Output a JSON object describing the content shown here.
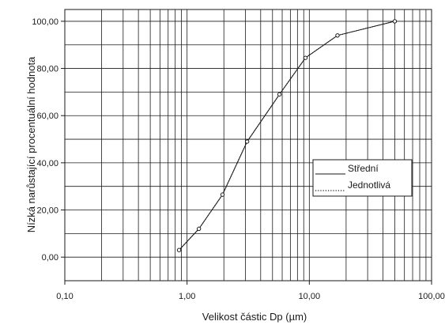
{
  "chart_data": {
    "type": "line",
    "title": "",
    "xlabel": "Velikost částic Dp (µm)",
    "ylabel": "Nízká narůstající procentuální hodnota",
    "x_scale": "log",
    "xlim": [
      0.1,
      100
    ],
    "ylim": [
      -10,
      105
    ],
    "x_ticks": [
      {
        "value": 0.1,
        "label": "0,10"
      },
      {
        "value": 1,
        "label": "1,00"
      },
      {
        "value": 10,
        "label": "10,00"
      },
      {
        "value": 100,
        "label": "100,00"
      }
    ],
    "y_ticks": [
      {
        "value": 0,
        "label": "0,00"
      },
      {
        "value": 20,
        "label": "20,00"
      },
      {
        "value": 40,
        "label": "40,00"
      },
      {
        "value": 60,
        "label": "60,00"
      },
      {
        "value": 80,
        "label": "80,00"
      },
      {
        "value": 100,
        "label": "100,00"
      }
    ],
    "grid": true,
    "legend_position": "right",
    "legend": [
      {
        "text": "Střední",
        "style": "solid"
      },
      {
        "text": "Jednotlivá",
        "style": "dotted"
      }
    ],
    "series": [
      {
        "style": "solid",
        "color": "#1a1a1a",
        "x": [
          0.86,
          1.25,
          1.95,
          3.1,
          5.7,
          9.3,
          17,
          50
        ],
        "y": [
          3,
          12,
          26.5,
          49,
          69,
          84.5,
          94,
          100
        ]
      },
      {
        "style": "dotted",
        "color": "#1a1a1a",
        "x": [
          0.86,
          1.25,
          1.95,
          3.1,
          5.7,
          9.3,
          17,
          50
        ],
        "y": [
          3,
          12,
          26.5,
          49,
          69,
          84.5,
          94,
          100
        ]
      }
    ]
  }
}
